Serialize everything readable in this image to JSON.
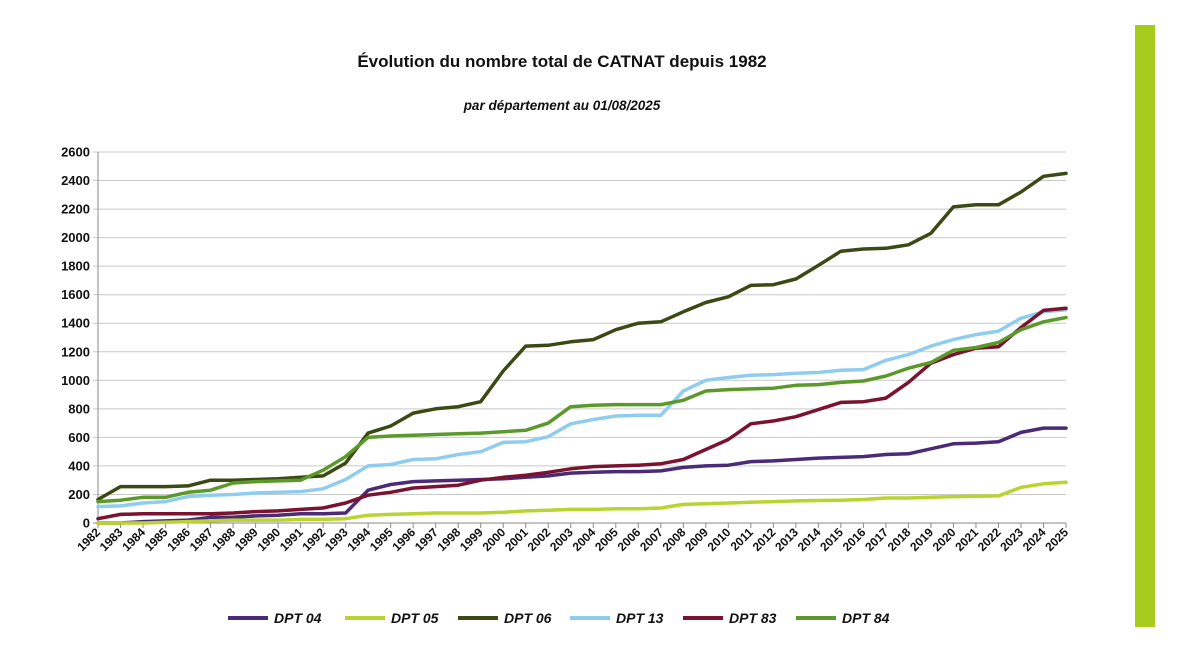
{
  "accent_bar_color": "#a8cc1e",
  "chart_data": {
    "type": "line",
    "title": "Évolution du nombre total de CATNAT depuis 1982",
    "subtitle": "par département au 01/08/2025",
    "xlabel": "",
    "ylabel": "",
    "ylim": [
      0,
      2600
    ],
    "yticks": [
      "0",
      "200",
      "400",
      "600",
      "800",
      "1000",
      "1200",
      "1400",
      "1600",
      "1800",
      "2000",
      "2200",
      "2400",
      "2600"
    ],
    "grid": true,
    "legend_position": "bottom",
    "categories": [
      "1982",
      "1983",
      "1984",
      "1985",
      "1986",
      "1987",
      "1988",
      "1989",
      "1990",
      "1991",
      "1992",
      "1993",
      "1994",
      "1995",
      "1996",
      "1997",
      "1998",
      "1999",
      "2000",
      "2001",
      "2002",
      "2003",
      "2004",
      "2005",
      "2006",
      "2007",
      "2008",
      "2009",
      "2010",
      "2011",
      "2012",
      "2013",
      "2014",
      "2015",
      "2016",
      "2017",
      "2018",
      "2019",
      "2020",
      "2021",
      "2022",
      "2023",
      "2024",
      "2025"
    ],
    "series": [
      {
        "name": "DPT 04",
        "color": "#4b2b78",
        "values": [
          0,
          0,
          10,
          15,
          20,
          40,
          40,
          50,
          55,
          65,
          65,
          70,
          230,
          270,
          290,
          295,
          300,
          305,
          310,
          320,
          330,
          350,
          355,
          360,
          360,
          365,
          390,
          400,
          405,
          430,
          435,
          445,
          455,
          460,
          465,
          480,
          485,
          520,
          555,
          560,
          570,
          635,
          665,
          665
        ]
      },
      {
        "name": "DPT 05",
        "color": "#b8d430",
        "values": [
          0,
          0,
          0,
          5,
          10,
          15,
          20,
          20,
          20,
          25,
          25,
          30,
          55,
          60,
          65,
          70,
          70,
          70,
          75,
          85,
          90,
          95,
          95,
          100,
          100,
          105,
          130,
          135,
          140,
          145,
          150,
          155,
          158,
          160,
          165,
          175,
          175,
          180,
          185,
          188,
          190,
          250,
          275,
          285
        ]
      },
      {
        "name": "DPT 06",
        "color": "#3b4a14",
        "values": [
          165,
          255,
          255,
          255,
          260,
          300,
          300,
          305,
          310,
          320,
          330,
          420,
          630,
          680,
          770,
          800,
          815,
          850,
          1065,
          1240,
          1245,
          1270,
          1285,
          1355,
          1400,
          1410,
          1480,
          1545,
          1585,
          1665,
          1670,
          1710,
          1805,
          1905,
          1920,
          1925,
          1950,
          2030,
          2215,
          2230,
          2230,
          2320,
          2430,
          2450
        ]
      },
      {
        "name": "DPT 13",
        "color": "#8fcdf0",
        "values": [
          115,
          120,
          140,
          150,
          185,
          195,
          200,
          210,
          215,
          220,
          240,
          305,
          400,
          410,
          445,
          450,
          480,
          500,
          565,
          570,
          605,
          695,
          725,
          750,
          755,
          755,
          925,
          1000,
          1020,
          1035,
          1040,
          1050,
          1055,
          1070,
          1075,
          1140,
          1180,
          1240,
          1285,
          1320,
          1345,
          1435,
          1480,
          1495
        ]
      },
      {
        "name": "DPT 83",
        "color": "#7a1230",
        "values": [
          30,
          60,
          65,
          65,
          65,
          65,
          70,
          80,
          85,
          95,
          105,
          140,
          195,
          215,
          245,
          255,
          265,
          300,
          320,
          335,
          355,
          380,
          395,
          400,
          405,
          415,
          445,
          515,
          585,
          695,
          715,
          745,
          795,
          845,
          850,
          875,
          985,
          1120,
          1180,
          1225,
          1235,
          1370,
          1490,
          1505
        ]
      },
      {
        "name": "DPT 84",
        "color": "#5b9a2a",
        "values": [
          150,
          160,
          180,
          180,
          215,
          230,
          280,
          290,
          295,
          300,
          370,
          465,
          600,
          610,
          615,
          620,
          625,
          630,
          640,
          650,
          700,
          815,
          825,
          830,
          830,
          830,
          860,
          925,
          935,
          940,
          945,
          965,
          970,
          985,
          995,
          1030,
          1085,
          1125,
          1210,
          1230,
          1265,
          1355,
          1410,
          1440
        ]
      }
    ]
  }
}
